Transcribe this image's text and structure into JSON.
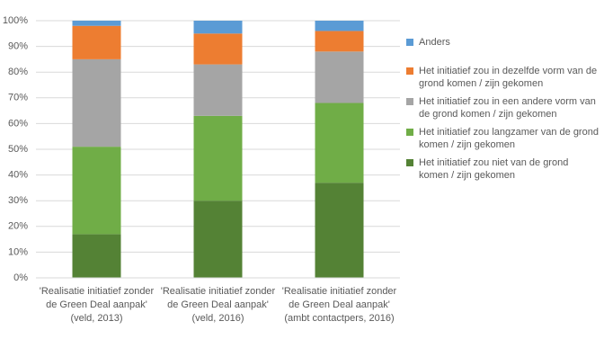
{
  "chart_data": {
    "type": "stacked_bar",
    "categories": [
      "'Realisatie initiatief zonder de Green Deal aanpak' (veld, 2013)",
      "'Realisatie initiatief zonder de Green Deal aanpak' (veld, 2016)",
      "'Realisatie initiatief zonder de Green Deal aanpak' (ambt contactpers, 2016)"
    ],
    "series": [
      {
        "name": "Het initiatief zou niet van de grond komen / zijn gekomen",
        "color": "#548235",
        "values": [
          17,
          30,
          37
        ]
      },
      {
        "name": "Het initiatief zou langzamer van de grond komen / zijn gekomen",
        "color": "#70ad47",
        "values": [
          34,
          33,
          31
        ]
      },
      {
        "name": "Het initiatief zou in een andere vorm van de grond komen / zijn gekomen",
        "color": "#a5a5a5",
        "values": [
          34,
          20,
          20
        ]
      },
      {
        "name": "Het initiatief zou in dezelfde vorm van de grond komen / zijn gekomen",
        "color": "#ed7d31",
        "values": [
          13,
          12,
          8
        ]
      },
      {
        "name": "Anders",
        "color": "#5b9bd5",
        "values": [
          2,
          5,
          4
        ]
      }
    ],
    "ylim": [
      0,
      100
    ],
    "yticks": [
      {
        "value": 0,
        "label": "0%"
      },
      {
        "value": 10,
        "label": "10%"
      },
      {
        "value": 20,
        "label": "20%"
      },
      {
        "value": 30,
        "label": "30%"
      },
      {
        "value": 40,
        "label": "40%"
      },
      {
        "value": 50,
        "label": "50%"
      },
      {
        "value": 60,
        "label": "60%"
      },
      {
        "value": 70,
        "label": "70%"
      },
      {
        "value": 80,
        "label": "80%"
      },
      {
        "value": 90,
        "label": "90%"
      },
      {
        "value": 100,
        "label": "100%"
      }
    ],
    "grid": true
  }
}
